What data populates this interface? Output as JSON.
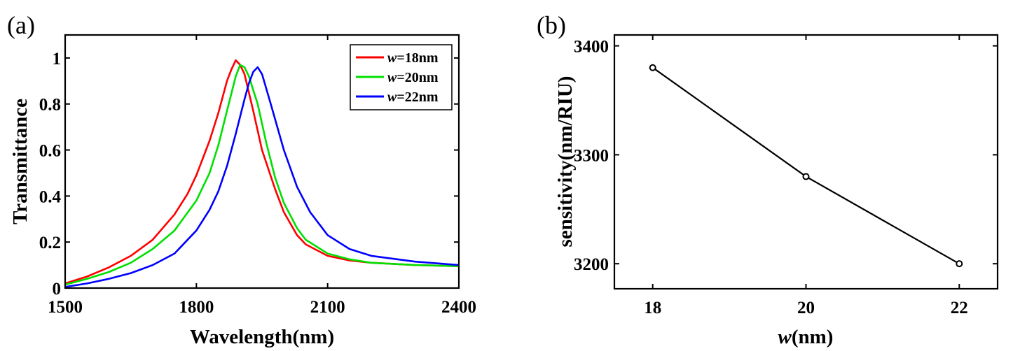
{
  "chart_data": [
    {
      "panel_label": "(a)",
      "type": "line",
      "xlabel": "Wavelength(nm)",
      "ylabel": "Transmittance",
      "xlim": [
        1500,
        2400
      ],
      "ylim": [
        0,
        1.1
      ],
      "xticks": [
        "1500",
        "1800",
        "2100",
        "2400"
      ],
      "yticks": [
        "0",
        "0.2",
        "0.4",
        "0.6",
        "0.8",
        "1"
      ],
      "grid": false,
      "legend_position": "top-right",
      "series": [
        {
          "legend_italic": "w",
          "legend_rest": "=18nm",
          "color": "#ff0000",
          "x": [
            1500,
            1550,
            1600,
            1650,
            1700,
            1750,
            1780,
            1800,
            1830,
            1850,
            1870,
            1880,
            1890,
            1900,
            1910,
            1930,
            1950,
            1980,
            2000,
            2030,
            2050,
            2100,
            2150,
            2200,
            2300,
            2400
          ],
          "y": [
            0.02,
            0.05,
            0.09,
            0.14,
            0.21,
            0.32,
            0.41,
            0.49,
            0.64,
            0.76,
            0.9,
            0.95,
            0.99,
            0.97,
            0.93,
            0.77,
            0.6,
            0.43,
            0.33,
            0.23,
            0.19,
            0.14,
            0.12,
            0.11,
            0.1,
            0.095
          ]
        },
        {
          "legend_italic": "w",
          "legend_rest": "=20nm",
          "color": "#00e000",
          "x": [
            1500,
            1550,
            1600,
            1650,
            1700,
            1750,
            1800,
            1830,
            1850,
            1870,
            1890,
            1900,
            1910,
            1920,
            1940,
            1960,
            1980,
            2000,
            2030,
            2050,
            2100,
            2150,
            2200,
            2300,
            2400
          ],
          "y": [
            0.015,
            0.04,
            0.07,
            0.11,
            0.17,
            0.25,
            0.38,
            0.5,
            0.62,
            0.77,
            0.92,
            0.97,
            0.96,
            0.92,
            0.8,
            0.63,
            0.48,
            0.37,
            0.26,
            0.21,
            0.15,
            0.125,
            0.11,
            0.1,
            0.095
          ]
        },
        {
          "legend_italic": "w",
          "legend_rest": "=22nm",
          "color": "#0000ff",
          "x": [
            1500,
            1550,
            1600,
            1650,
            1700,
            1750,
            1800,
            1830,
            1850,
            1870,
            1890,
            1910,
            1920,
            1930,
            1940,
            1950,
            1970,
            2000,
            2030,
            2060,
            2100,
            2150,
            2200,
            2300,
            2400
          ],
          "y": [
            0.005,
            0.02,
            0.04,
            0.065,
            0.1,
            0.15,
            0.25,
            0.34,
            0.42,
            0.53,
            0.67,
            0.82,
            0.89,
            0.94,
            0.96,
            0.93,
            0.8,
            0.6,
            0.44,
            0.33,
            0.23,
            0.17,
            0.14,
            0.115,
            0.1
          ]
        }
      ]
    },
    {
      "panel_label": "(b)",
      "type": "line",
      "xlabel_italic": "w",
      "xlabel_rest": "(nm)",
      "ylabel": "sensitivity(nm/RIU)",
      "xlim": [
        17.5,
        22.5
      ],
      "ylim": [
        3177,
        3410
      ],
      "xticks": [
        "18",
        "20",
        "22"
      ],
      "yticks": [
        "3200",
        "3300",
        "3400"
      ],
      "grid": false,
      "marker": "circle",
      "series": [
        {
          "color": "#000000",
          "x": [
            18,
            20,
            22
          ],
          "y": [
            3380,
            3280,
            3200
          ]
        }
      ]
    }
  ]
}
